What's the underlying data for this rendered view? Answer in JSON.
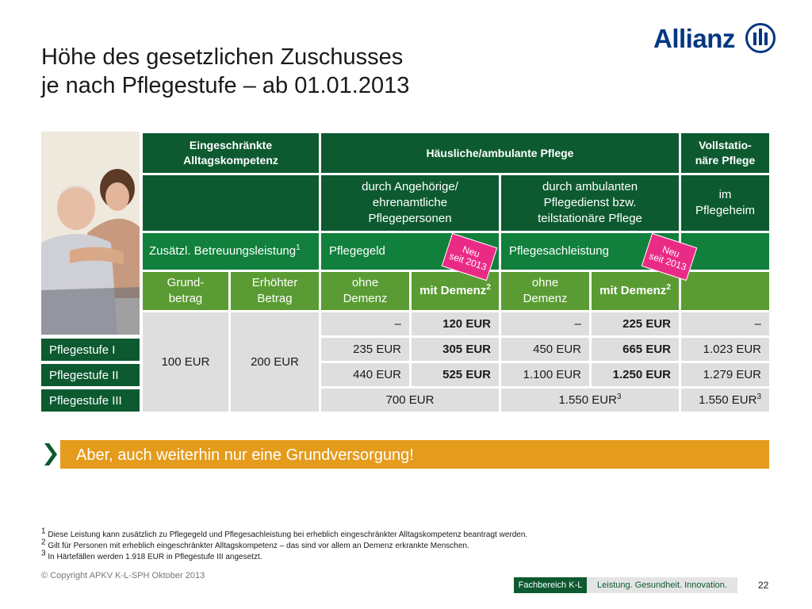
{
  "title": {
    "line1": "Höhe des gesetzlichen Zuschusses",
    "line2": "je nach Pflegestufe – ab 01.01.2013"
  },
  "logo": {
    "text": "Allianz",
    "icon": "allianz-eagle-icon",
    "color": "#003781"
  },
  "photo": {
    "icon": "caregiver-and-elderly-man-photo"
  },
  "table": {
    "header1": {
      "eingeschraenkt": "Eingeschränkte Alltagskompetenz",
      "haeuslich": "Häusliche/ambulante Pflege",
      "vollstationaer": "Vollstatio- näre Pflege"
    },
    "header2": {
      "angehoerige": "durch Angehörige/ ehrenamtliche Pflegepersonen",
      "ambulant": "durch ambulanten Pflegedienst bzw. teilstationäre Pflege",
      "heim": "im Pflegeheim"
    },
    "header3": {
      "zusaetzl": "Zusätzl. Betreuungsleistung",
      "zusaetzl_sup": "1",
      "pflegegeld": "Pflegegeld",
      "sachleistung": "Pflegesachleistung"
    },
    "header4": {
      "grund": "Grund- betrag",
      "erhoeht": "Erhöhter Betrag",
      "ohne1": "ohne Demenz",
      "mit1": "mit Demenz",
      "mit1_sup": "2",
      "ohne2": "ohne Demenz",
      "mit2": "mit Demenz",
      "mit2_sup": "2"
    },
    "badges": [
      {
        "line1": "Neu",
        "line2": "seit 2013"
      },
      {
        "line1": "Neu",
        "line2": "seit 2013"
      }
    ],
    "grundbetrag": "100 EUR",
    "erhoehter_betrag": "200 EUR",
    "row0": {
      "ohne1": "–",
      "mit1": "120 EUR",
      "ohne2": "–",
      "mit2": "225 EUR",
      "voll": "–"
    },
    "row1": {
      "label": "Pflegestufe I",
      "ohne1": "235 EUR",
      "mit1": "305 EUR",
      "ohne2": "450 EUR",
      "mit2": "665 EUR",
      "voll": "1.023 EUR"
    },
    "row2": {
      "label": "Pflegestufe II",
      "ohne1": "440 EUR",
      "mit1": "525 EUR",
      "ohne2": "1.100 EUR",
      "mit2": "1.250 EUR",
      "voll": "1.279 EUR"
    },
    "row3": {
      "label": "Pflegestufe III",
      "geld": "700 EUR",
      "sach": "1.550 EUR",
      "sach_sup": "3",
      "voll": "1.550 EUR",
      "voll_sup": "3"
    }
  },
  "banner": {
    "text": "Aber, auch weiterhin nur eine Grundversorgung!",
    "icon": "chevron-right-icon"
  },
  "footnotes": [
    {
      "num": "1",
      "text": "Diese Leistung kann zusätzlich zu Pflegegeld und Pflegesachleistung bei erheblich eingeschränkter Alltagskompetenz beantragt werden."
    },
    {
      "num": "2",
      "text": "Gilt für Personen mit erheblich eingeschränkter Alltagskompetenz – das sind vor allem an Demenz erkrankte Menschen."
    },
    {
      "num": "3",
      "text": "In Härtefällen werden 1.918 EUR in Pflegestufe III angesetzt."
    }
  ],
  "copyright": "© Copyright APKV K-L-SPH Oktober 2013",
  "footer": {
    "fachbereich": "Fachbereich K-L",
    "slogan": "Leistung. Gesundheit. Innovation.",
    "page": "22"
  },
  "colors": {
    "dark_green": "#0d5a30",
    "mid_green": "#11803c",
    "light_green": "#5a9c33",
    "gray": "#dedede",
    "orange": "#e59b1c",
    "pink": "#ea2b86"
  }
}
